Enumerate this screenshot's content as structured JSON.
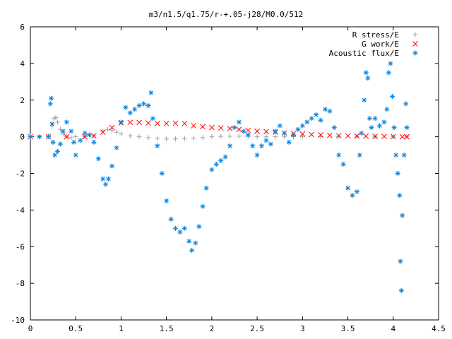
{
  "chart_data": {
    "type": "scatter",
    "title": "m3/n1.5/q1.75/r-+.05-j28/M0.0/512",
    "xlabel": "",
    "ylabel": "",
    "xlim": [
      0,
      4.5
    ],
    "ylim": [
      -10,
      6
    ],
    "xticks": [
      0,
      0.5,
      1,
      1.5,
      2,
      2.5,
      3,
      3.5,
      4,
      4.5
    ],
    "yticks": [
      -10,
      -8,
      -6,
      -4,
      -2,
      0,
      2,
      4,
      6
    ],
    "xtick_labels": [
      "0",
      "0.5",
      "1",
      "1.5",
      "2",
      "2.5",
      "3",
      "3.5",
      "4",
      "4.5"
    ],
    "ytick_labels": [
      "-10",
      "-8",
      "-6",
      "-4",
      "-2",
      "0",
      "2",
      "4",
      "6"
    ],
    "grid": false,
    "legend_position": "top-right",
    "series": [
      {
        "name": "R stress/E",
        "marker": "plus",
        "color": "#a0a0a0",
        "points": [
          [
            0.0,
            0.0
          ],
          [
            0.1,
            0.0
          ],
          [
            0.2,
            0.05
          ],
          [
            0.24,
            0.6
          ],
          [
            0.26,
            1.0
          ],
          [
            0.28,
            1.05
          ],
          [
            0.3,
            0.8
          ],
          [
            0.33,
            0.4
          ],
          [
            0.36,
            0.15
          ],
          [
            0.4,
            0.0
          ],
          [
            0.45,
            -0.05
          ],
          [
            0.5,
            0.0
          ],
          [
            0.6,
            0.0
          ],
          [
            0.7,
            0.05
          ],
          [
            0.8,
            0.3
          ],
          [
            0.85,
            0.4
          ],
          [
            0.9,
            0.35
          ],
          [
            0.95,
            0.25
          ],
          [
            1.0,
            0.15
          ],
          [
            1.1,
            0.05
          ],
          [
            1.2,
            0.0
          ],
          [
            1.3,
            -0.05
          ],
          [
            1.4,
            -0.08
          ],
          [
            1.5,
            -0.12
          ],
          [
            1.6,
            -0.12
          ],
          [
            1.7,
            -0.1
          ],
          [
            1.8,
            -0.08
          ],
          [
            1.9,
            -0.05
          ],
          [
            2.0,
            0.0
          ],
          [
            2.1,
            0.02
          ],
          [
            2.2,
            0.03
          ],
          [
            2.3,
            0.03
          ],
          [
            2.4,
            0.02
          ],
          [
            2.5,
            0.0
          ],
          [
            2.6,
            0.0
          ],
          [
            2.7,
            0.0
          ],
          [
            2.8,
            0.0
          ],
          [
            2.9,
            0.0
          ],
          [
            3.0,
            0.0
          ],
          [
            3.2,
            0.0
          ],
          [
            3.4,
            0.0
          ],
          [
            3.6,
            0.0
          ],
          [
            3.8,
            0.0
          ],
          [
            4.0,
            0.0
          ],
          [
            4.15,
            0.0
          ]
        ]
      },
      {
        "name": "G work/E",
        "marker": "cross",
        "color": "#ff0000",
        "points": [
          [
            0.0,
            0.0
          ],
          [
            0.2,
            0.0
          ],
          [
            0.4,
            0.0
          ],
          [
            0.6,
            0.0
          ],
          [
            0.7,
            0.05
          ],
          [
            0.8,
            0.25
          ],
          [
            0.9,
            0.5
          ],
          [
            1.0,
            0.75
          ],
          [
            1.1,
            0.78
          ],
          [
            1.2,
            0.78
          ],
          [
            1.3,
            0.75
          ],
          [
            1.4,
            0.72
          ],
          [
            1.5,
            0.72
          ],
          [
            1.6,
            0.74
          ],
          [
            1.7,
            0.72
          ],
          [
            1.8,
            0.6
          ],
          [
            1.9,
            0.55
          ],
          [
            2.0,
            0.5
          ],
          [
            2.1,
            0.48
          ],
          [
            2.2,
            0.45
          ],
          [
            2.3,
            0.4
          ],
          [
            2.4,
            0.35
          ],
          [
            2.5,
            0.3
          ],
          [
            2.6,
            0.28
          ],
          [
            2.7,
            0.25
          ],
          [
            2.8,
            0.2
          ],
          [
            2.9,
            0.18
          ],
          [
            3.0,
            0.15
          ],
          [
            3.1,
            0.12
          ],
          [
            3.2,
            0.1
          ],
          [
            3.3,
            0.08
          ],
          [
            3.4,
            0.06
          ],
          [
            3.5,
            0.05
          ],
          [
            3.6,
            0.04
          ],
          [
            3.7,
            0.03
          ],
          [
            3.8,
            0.02
          ],
          [
            3.9,
            0.02
          ],
          [
            4.0,
            0.01
          ],
          [
            4.1,
            0.0
          ],
          [
            4.15,
            0.0
          ]
        ]
      },
      {
        "name": "Acoustic flux/E",
        "marker": "star",
        "color": "#0a84e0",
        "points": [
          [
            0.0,
            0.0
          ],
          [
            0.1,
            0.0
          ],
          [
            0.2,
            0.0
          ],
          [
            0.22,
            1.8
          ],
          [
            0.23,
            2.1
          ],
          [
            0.24,
            0.7
          ],
          [
            0.25,
            -0.3
          ],
          [
            0.27,
            -1.0
          ],
          [
            0.3,
            -0.8
          ],
          [
            0.33,
            -0.4
          ],
          [
            0.36,
            0.3
          ],
          [
            0.4,
            0.8
          ],
          [
            0.45,
            0.3
          ],
          [
            0.48,
            -0.3
          ],
          [
            0.5,
            -1.0
          ],
          [
            0.55,
            -0.2
          ],
          [
            0.6,
            0.2
          ],
          [
            0.65,
            0.1
          ],
          [
            0.7,
            -0.3
          ],
          [
            0.75,
            -1.2
          ],
          [
            0.8,
            -2.3
          ],
          [
            0.83,
            -2.6
          ],
          [
            0.86,
            -2.3
          ],
          [
            0.9,
            -1.6
          ],
          [
            0.95,
            -0.6
          ],
          [
            1.0,
            0.8
          ],
          [
            1.05,
            1.6
          ],
          [
            1.1,
            1.3
          ],
          [
            1.15,
            1.5
          ],
          [
            1.2,
            1.7
          ],
          [
            1.25,
            1.8
          ],
          [
            1.3,
            1.7
          ],
          [
            1.33,
            2.4
          ],
          [
            1.35,
            1.0
          ],
          [
            1.4,
            -0.5
          ],
          [
            1.45,
            -2.0
          ],
          [
            1.5,
            -3.5
          ],
          [
            1.55,
            -4.5
          ],
          [
            1.6,
            -5.0
          ],
          [
            1.65,
            -5.2
          ],
          [
            1.7,
            -5.0
          ],
          [
            1.75,
            -5.7
          ],
          [
            1.78,
            -6.2
          ],
          [
            1.82,
            -5.8
          ],
          [
            1.86,
            -4.9
          ],
          [
            1.9,
            -3.8
          ],
          [
            1.94,
            -2.8
          ],
          [
            2.0,
            -1.8
          ],
          [
            2.05,
            -1.5
          ],
          [
            2.1,
            -1.3
          ],
          [
            2.15,
            -1.1
          ],
          [
            2.2,
            -0.5
          ],
          [
            2.25,
            0.5
          ],
          [
            2.3,
            0.8
          ],
          [
            2.35,
            0.3
          ],
          [
            2.4,
            0.1
          ],
          [
            2.45,
            -0.5
          ],
          [
            2.5,
            -1.0
          ],
          [
            2.55,
            -0.5
          ],
          [
            2.6,
            -0.2
          ],
          [
            2.65,
            -0.4
          ],
          [
            2.7,
            0.3
          ],
          [
            2.75,
            0.6
          ],
          [
            2.8,
            0.2
          ],
          [
            2.85,
            -0.3
          ],
          [
            2.9,
            0.1
          ],
          [
            2.95,
            0.4
          ],
          [
            3.0,
            0.6
          ],
          [
            3.05,
            0.8
          ],
          [
            3.1,
            1.0
          ],
          [
            3.15,
            1.2
          ],
          [
            3.2,
            0.9
          ],
          [
            3.25,
            1.5
          ],
          [
            3.3,
            1.4
          ],
          [
            3.35,
            0.5
          ],
          [
            3.4,
            -1.0
          ],
          [
            3.45,
            -1.5
          ],
          [
            3.5,
            -2.8
          ],
          [
            3.55,
            -3.2
          ],
          [
            3.6,
            -3.0
          ],
          [
            3.63,
            -1.0
          ],
          [
            3.65,
            0.2
          ],
          [
            3.68,
            2.0
          ],
          [
            3.7,
            3.5
          ],
          [
            3.72,
            3.2
          ],
          [
            3.74,
            1.0
          ],
          [
            3.76,
            0.5
          ],
          [
            3.8,
            1.0
          ],
          [
            3.85,
            0.6
          ],
          [
            3.9,
            0.8
          ],
          [
            3.93,
            1.5
          ],
          [
            3.95,
            3.5
          ],
          [
            3.97,
            4.0
          ],
          [
            3.99,
            2.2
          ],
          [
            4.01,
            0.5
          ],
          [
            4.03,
            -1.0
          ],
          [
            4.05,
            -2.0
          ],
          [
            4.07,
            -3.2
          ],
          [
            4.08,
            -6.8
          ],
          [
            4.09,
            -8.4
          ],
          [
            4.1,
            -4.3
          ],
          [
            4.12,
            -1.0
          ],
          [
            4.14,
            1.8
          ],
          [
            4.15,
            0.5
          ]
        ]
      }
    ]
  }
}
